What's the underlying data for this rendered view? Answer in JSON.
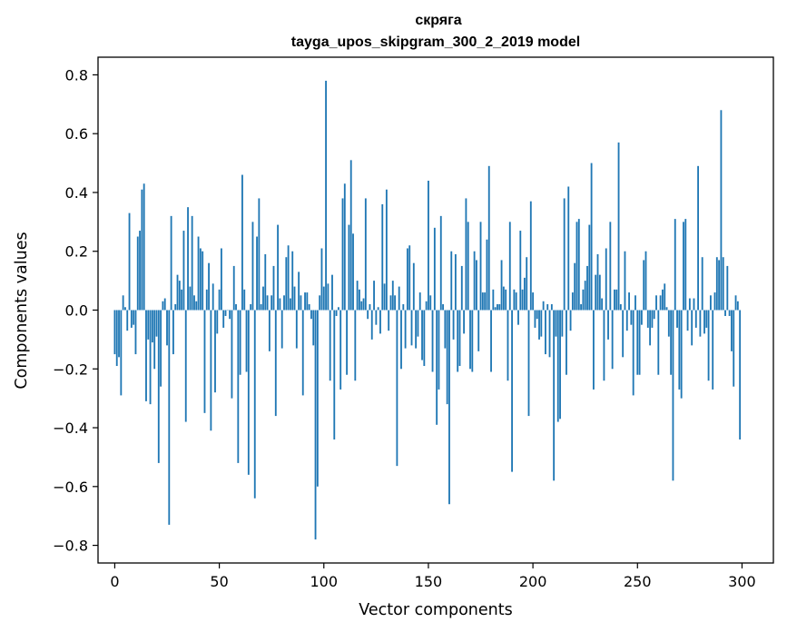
{
  "chart_data": {
    "type": "bar",
    "title": "скряга",
    "subtitle": "tayga_upos_skipgram_300_2_2019 model",
    "xlabel": "Vector components",
    "ylabel": "Components values",
    "xlim": [
      -8,
      315
    ],
    "ylim": [
      -0.86,
      0.86
    ],
    "xticks": [
      0,
      50,
      100,
      150,
      200,
      250,
      300
    ],
    "xtick_labels": [
      "0",
      "50",
      "100",
      "150",
      "200",
      "250",
      "300"
    ],
    "yticks": [
      -0.8,
      -0.6,
      -0.4,
      -0.2,
      0.0,
      0.2,
      0.4,
      0.6,
      0.8
    ],
    "ytick_labels": [
      "−0.8",
      "−0.6",
      "−0.4",
      "−0.2",
      "0.0",
      "0.2",
      "0.4",
      "0.6",
      "0.8"
    ],
    "bar_color": "#1f77b4",
    "values": [
      -0.15,
      -0.19,
      -0.16,
      -0.29,
      0.05,
      0.01,
      -0.07,
      0.33,
      -0.06,
      -0.05,
      -0.15,
      0.25,
      0.27,
      0.41,
      0.43,
      -0.31,
      -0.1,
      -0.32,
      -0.11,
      -0.2,
      -0.09,
      -0.52,
      -0.26,
      0.03,
      0.04,
      -0.12,
      -0.73,
      0.32,
      -0.15,
      0.02,
      0.12,
      0.1,
      0.07,
      0.27,
      -0.38,
      0.35,
      0.08,
      0.32,
      0.05,
      0.03,
      0.25,
      0.21,
      0.2,
      -0.35,
      0.07,
      0.16,
      -0.41,
      0.09,
      -0.28,
      -0.08,
      0.07,
      0.21,
      -0.06,
      -0.02,
      0.0,
      -0.03,
      -0.3,
      0.15,
      0.02,
      -0.52,
      -0.22,
      0.46,
      0.07,
      -0.21,
      -0.56,
      0.02,
      0.3,
      -0.64,
      0.25,
      0.38,
      0.02,
      0.08,
      0.19,
      0.05,
      -0.14,
      0.05,
      0.15,
      -0.36,
      0.29,
      0.04,
      -0.13,
      0.05,
      0.18,
      0.22,
      0.04,
      0.2,
      0.08,
      -0.13,
      0.13,
      0.05,
      -0.29,
      0.06,
      0.06,
      0.02,
      -0.03,
      -0.12,
      -0.78,
      -0.6,
      0.05,
      0.21,
      0.08,
      0.78,
      0.09,
      -0.24,
      0.12,
      -0.44,
      -0.02,
      0.01,
      -0.27,
      0.38,
      0.43,
      -0.22,
      0.29,
      0.51,
      0.26,
      -0.24,
      0.1,
      0.07,
      0.03,
      0.04,
      0.38,
      -0.03,
      0.02,
      -0.1,
      0.1,
      -0.05,
      0.01,
      -0.08,
      0.36,
      0.09,
      0.41,
      -0.07,
      0.05,
      0.1,
      0.05,
      -0.53,
      0.08,
      -0.2,
      0.02,
      -0.13,
      0.21,
      0.22,
      -0.12,
      0.16,
      -0.13,
      -0.09,
      0.06,
      -0.17,
      -0.19,
      0.03,
      0.44,
      0.05,
      -0.21,
      0.28,
      -0.39,
      -0.27,
      0.32,
      0.02,
      -0.13,
      -0.32,
      -0.66,
      0.2,
      -0.1,
      0.19,
      -0.21,
      -0.19,
      0.15,
      -0.08,
      0.38,
      0.3,
      -0.2,
      -0.21,
      0.2,
      0.17,
      -0.14,
      0.3,
      0.06,
      0.06,
      0.24,
      0.49,
      -0.21,
      0.07,
      0.01,
      0.02,
      0.02,
      0.17,
      0.08,
      0.07,
      -0.24,
      0.3,
      -0.55,
      0.07,
      0.06,
      -0.05,
      0.27,
      0.07,
      0.11,
      0.18,
      -0.36,
      0.37,
      0.06,
      -0.06,
      -0.03,
      -0.1,
      -0.09,
      0.03,
      -0.15,
      0.02,
      -0.16,
      0.02,
      -0.58,
      -0.09,
      -0.38,
      -0.37,
      -0.09,
      0.38,
      -0.22,
      0.42,
      -0.07,
      0.06,
      0.16,
      0.3,
      0.31,
      0.02,
      0.07,
      0.1,
      0.15,
      0.29,
      0.5,
      -0.27,
      0.12,
      0.19,
      0.12,
      0.04,
      -0.24,
      0.21,
      -0.1,
      0.3,
      -0.2,
      0.07,
      0.07,
      0.57,
      0.02,
      -0.16,
      0.2,
      -0.07,
      0.06,
      -0.05,
      -0.29,
      0.05,
      -0.22,
      -0.22,
      -0.05,
      0.17,
      0.2,
      -0.06,
      -0.12,
      -0.06,
      -0.03,
      0.05,
      -0.22,
      0.05,
      0.07,
      0.09,
      0.01,
      -0.09,
      -0.22,
      -0.58,
      0.31,
      -0.06,
      -0.27,
      -0.3,
      0.3,
      0.31,
      -0.07,
      0.04,
      -0.12,
      0.04,
      -0.06,
      0.49,
      -0.09,
      0.18,
      -0.08,
      -0.06,
      -0.24,
      0.05,
      -0.27,
      0.06,
      0.18,
      0.17,
      0.68,
      0.18,
      -0.02,
      0.15,
      -0.02,
      -0.14,
      -0.26,
      0.05,
      0.03,
      -0.44
    ]
  }
}
